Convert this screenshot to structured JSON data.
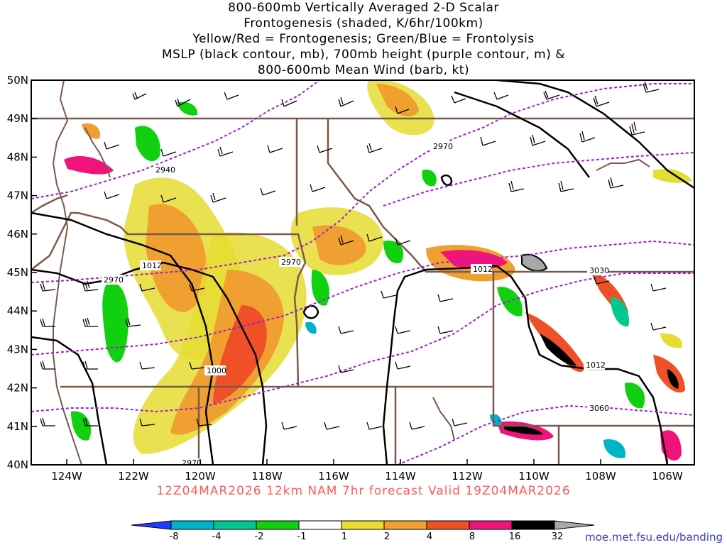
{
  "title_lines": [
    "800-600mb Vertically Averaged 2-D Scalar",
    "Frontogenesis (shaded, K/6hr/100km)",
    "Yellow/Red = Frontogenesis;  Green/Blue = Frontolysis",
    "MSLP (black contour, mb), 700mb height (purple contour, m) &",
    "800-600mb Mean Wind (barb, kt)"
  ],
  "lat_labels": [
    "50N",
    "49N",
    "48N",
    "47N",
    "46N",
    "45N",
    "44N",
    "43N",
    "42N",
    "41N",
    "40N"
  ],
  "lon_labels": [
    "124W",
    "122W",
    "120W",
    "118W",
    "116W",
    "114W",
    "112W",
    "110W",
    "108W",
    "106W"
  ],
  "contour_labels": {
    "height": [
      "2940",
      "2970",
      "2970",
      "2970",
      "3030",
      "3060",
      "2970"
    ],
    "mslp": [
      "1012",
      "1012",
      "1012",
      "1000"
    ]
  },
  "valid_text": "12Z04MAR2026  12km NAM  7hr forecast Valid  19Z04MAR2026",
  "colorbar": {
    "labels": [
      "-8",
      "-4",
      "-2",
      "-1",
      "1",
      "2",
      "4",
      "8",
      "16",
      "32"
    ],
    "colors": [
      "#1e3cff",
      "#00b4c8",
      "#00c890",
      "#10d010",
      "#ffffff",
      "#e6dc32",
      "#f0a030",
      "#f05028",
      "#f0147a",
      "#000000",
      "#a8a8a8"
    ]
  },
  "credit": "moe.met.fsu.edu/banding",
  "colors": {
    "state_borders": "#7a5a4a",
    "mslp": "#000000",
    "height": "#a020c8",
    "valid_text": "#ff5a5a"
  }
}
